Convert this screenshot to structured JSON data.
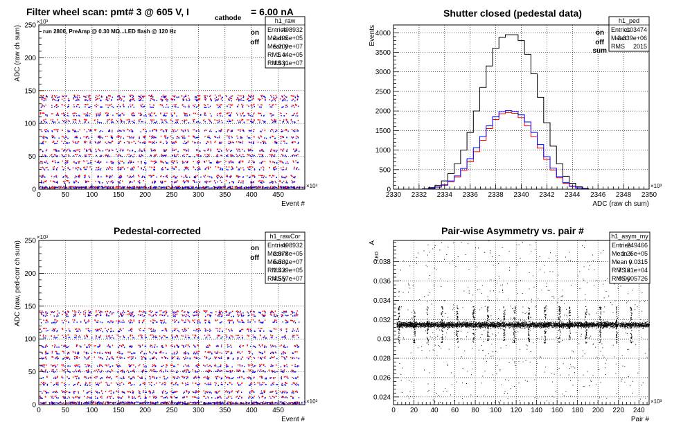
{
  "charts": [
    {
      "id": "raw",
      "title": "Filter wheel scan: pmt#   3 @   605 V, I",
      "title_sub": "cathode",
      "title_tail": "= 6.00 nA",
      "note": "run 2800, PreAmp @ 0.30 MΩ...LED flash @  120 Hz",
      "ylabel": "ADC (raw ch sum)",
      "xlabel": "Event #",
      "y_exponent": "×10³",
      "x_exponent": "×10³",
      "legend": {
        "on": "on",
        "off": "off"
      },
      "stats": {
        "name": "h1_raw",
        "rows": [
          [
            "Entries",
            "498932"
          ],
          [
            "Mean x",
            "2.495e+05"
          ],
          [
            "Mean y",
            "5.209e+07"
          ],
          [
            "RMS x",
            "1.44e+05"
          ],
          [
            "RMS y",
            "4.631e+07"
          ]
        ]
      }
    },
    {
      "id": "ped",
      "title": "Shutter closed (pedestal data)",
      "ylabel": "Events",
      "xlabel": "ADC (raw ch sum)",
      "x_exponent": "×10³",
      "legend": {
        "on": "on",
        "off": "off",
        "sum": "sum"
      },
      "stats": {
        "name": "h1_ped",
        "rows": [
          [
            "Entries",
            "103474"
          ],
          [
            "Mean",
            "2.339e+06"
          ],
          [
            "RMS",
            "2015"
          ]
        ]
      }
    },
    {
      "id": "cor",
      "title": "Pedestal-corrected",
      "ylabel": "ADC (raw, ped-corr ch sum)",
      "xlabel": "Event #",
      "y_exponent": "×10³",
      "x_exponent": "×10³",
      "legend": {
        "on": "on",
        "off": "off"
      },
      "stats": {
        "name": "h1_rawCor",
        "rows": [
          [
            "Entries",
            "498932"
          ],
          [
            "Mean x",
            "2.578e+05"
          ],
          [
            "Mean y",
            "5.531e+07"
          ],
          [
            "RMS x",
            "1.429e+05"
          ],
          [
            "RMS y",
            "4.557e+07"
          ]
        ]
      }
    },
    {
      "id": "asym",
      "title": "Pair-wise Asymmetry vs. pair #",
      "ylabel": "A",
      "ylabel_sub": "LED",
      "xlabel": "Pair #",
      "x_exponent": "×10³",
      "stats": {
        "name": "h1_asym_my",
        "rows": [
          [
            "Entries",
            "249466"
          ],
          [
            "Mean x",
            "1.25e+05"
          ],
          [
            "Mean y",
            "0.0315"
          ],
          [
            "RMS x",
            "7.181e+04"
          ],
          [
            "RMS y",
            "0.0005726"
          ]
        ]
      }
    }
  ],
  "chart_data": [
    {
      "id": "raw",
      "type": "scatter",
      "xlim": [
        0,
        500
      ],
      "ylim": [
        0,
        250
      ],
      "x_ticks": [
        0,
        50,
        100,
        150,
        200,
        250,
        300,
        350,
        400,
        450
      ],
      "y_ticks": [
        0,
        50,
        100,
        150,
        200,
        250
      ],
      "grid": true,
      "legend_position": "top-right",
      "series": [
        {
          "name": "on",
          "color": "#ff0000",
          "levels": [
            2,
            12,
            20,
            33,
            42,
            52,
            60,
            72,
            80,
            90,
            105,
            115,
            128,
            137,
            142
          ]
        },
        {
          "name": "off",
          "color": "#0000ff",
          "levels": [
            2,
            10,
            18,
            30,
            40,
            50,
            58,
            70,
            78,
            88,
            102,
            112,
            125,
            135,
            140
          ]
        }
      ]
    },
    {
      "id": "ped",
      "type": "line",
      "xlim": [
        2330,
        2350
      ],
      "ylim": [
        0,
        4200
      ],
      "x_ticks": [
        2330,
        2332,
        2334,
        2336,
        2338,
        2340,
        2342,
        2344,
        2346,
        2348,
        2350
      ],
      "y_ticks": [
        0,
        500,
        1000,
        1500,
        2000,
        2500,
        3000,
        3500,
        4000
      ],
      "grid": true,
      "legend_position": "top-right",
      "x": [
        2332.5,
        2333,
        2333.5,
        2334,
        2334.5,
        2335,
        2335.5,
        2336,
        2336.5,
        2337,
        2337.5,
        2338,
        2338.5,
        2339,
        2339.5,
        2340,
        2340.5,
        2341,
        2341.5,
        2342,
        2342.5,
        2343,
        2343.5,
        2344,
        2344.5,
        2345
      ],
      "series": [
        {
          "name": "sum",
          "color": "#000000",
          "values": [
            10,
            40,
            100,
            210,
            400,
            650,
            1000,
            1450,
            2000,
            2600,
            3150,
            3600,
            3880,
            3950,
            3950,
            3800,
            3450,
            2950,
            2350,
            1700,
            1100,
            650,
            330,
            150,
            60,
            20
          ]
        },
        {
          "name": "on",
          "color": "#ff0000",
          "values": [
            5,
            20,
            50,
            100,
            190,
            310,
            480,
            700,
            960,
            1250,
            1550,
            1780,
            1930,
            1960,
            1940,
            1830,
            1620,
            1340,
            1050,
            760,
            490,
            290,
            150,
            70,
            30,
            10
          ]
        },
        {
          "name": "off",
          "color": "#0000ff",
          "values": [
            5,
            20,
            55,
            110,
            210,
            340,
            530,
            780,
            1060,
            1350,
            1620,
            1850,
            1980,
            2010,
            1990,
            1900,
            1720,
            1450,
            1140,
            830,
            540,
            320,
            170,
            80,
            30,
            10
          ]
        }
      ]
    },
    {
      "id": "cor",
      "type": "scatter",
      "xlim": [
        0,
        500
      ],
      "ylim": [
        0,
        250
      ],
      "x_ticks": [
        0,
        50,
        100,
        150,
        200,
        250,
        300,
        350,
        400,
        450
      ],
      "y_ticks": [
        0,
        50,
        100,
        150,
        200,
        250
      ],
      "grid": true,
      "legend_position": "top-right",
      "series": [
        {
          "name": "on",
          "color": "#ff0000",
          "levels": [
            2,
            12,
            20,
            33,
            42,
            52,
            60,
            72,
            80,
            90,
            105,
            115,
            128,
            137,
            142
          ]
        },
        {
          "name": "off",
          "color": "#0000ff",
          "levels": [
            2,
            10,
            18,
            30,
            40,
            50,
            58,
            70,
            78,
            88,
            102,
            112,
            125,
            135,
            140
          ]
        }
      ]
    },
    {
      "id": "asym",
      "type": "scatter",
      "xlim": [
        0,
        250
      ],
      "ylim": [
        0.0232,
        0.0402
      ],
      "x_ticks": [
        0,
        20,
        40,
        60,
        80,
        100,
        120,
        140,
        160,
        180,
        200,
        220,
        240
      ],
      "y_ticks": [
        0.024,
        0.026,
        0.028,
        0.03,
        0.032,
        0.034,
        0.036,
        0.038
      ],
      "grid": true,
      "band_center": 0.0315,
      "band_halfwidth": 0.0004,
      "spikes_x": [
        5,
        20,
        33,
        47,
        62,
        78,
        92,
        108,
        118,
        132,
        148,
        162,
        172,
        188,
        202,
        218,
        232
      ],
      "color": "#000000"
    }
  ]
}
